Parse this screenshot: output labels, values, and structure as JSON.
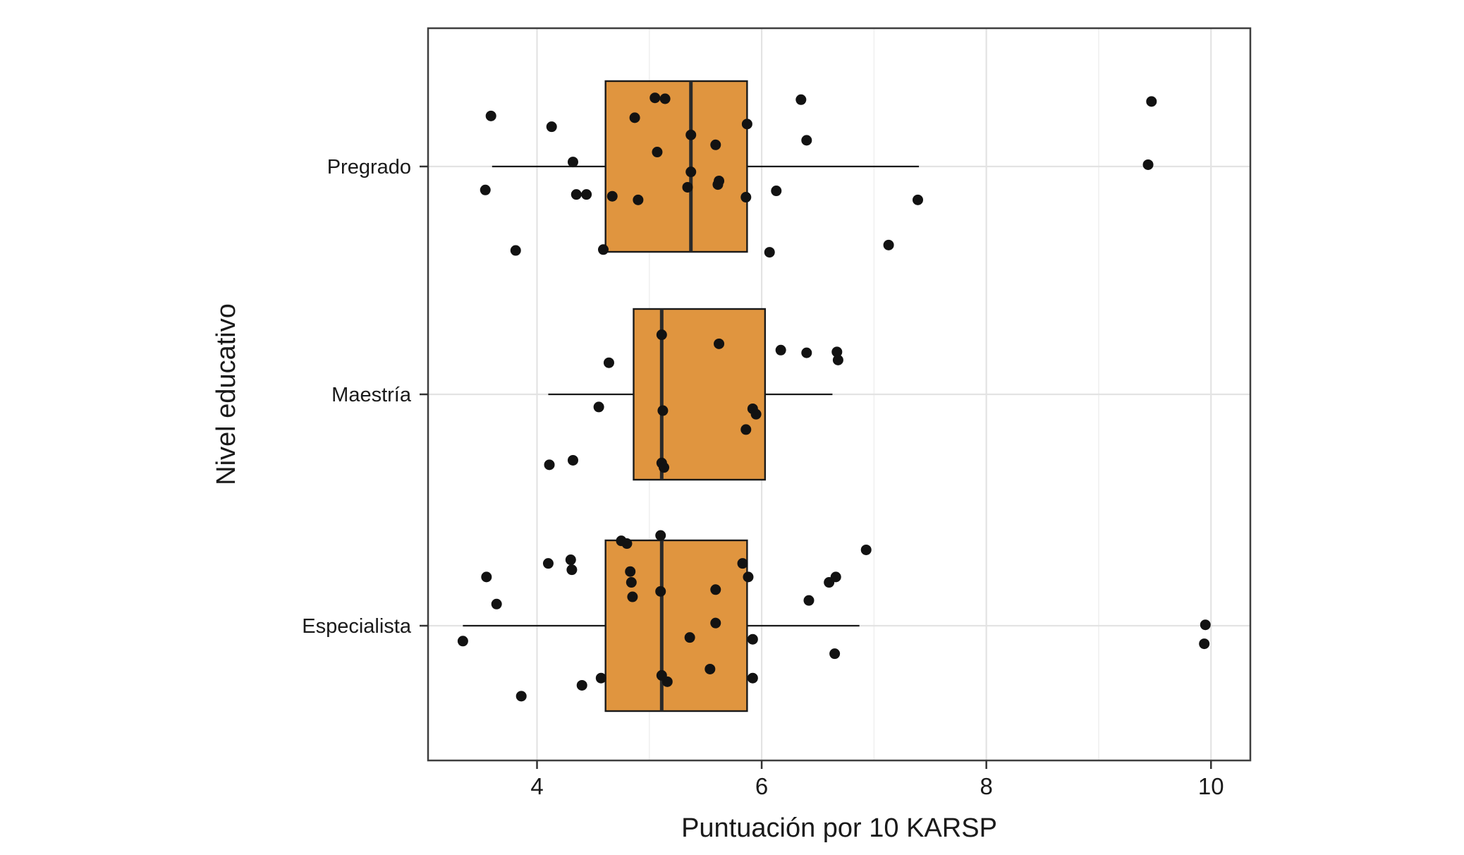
{
  "figure": {
    "background": "#ffffff",
    "panel_border_color": "#3f3f3f",
    "grid_major_color": "#e3e3e3",
    "grid_minor_color": "#f1f1f1",
    "tick_mark_color": "#333333",
    "text_color": "#1a1a1a"
  },
  "chart_data": {
    "type": "boxplot",
    "orientation": "horizontal",
    "title": "",
    "xlabel": "Puntuación por 10 KARSP",
    "ylabel": "Nivel educativo",
    "x_ticks": [
      4,
      6,
      8,
      10
    ],
    "x_minor_ticks": [
      5,
      7,
      9
    ],
    "xlim": [
      3.03,
      10.35
    ],
    "grid": true,
    "legend": "none",
    "categories": [
      "Pregrado",
      "Maestría",
      "Especialista"
    ],
    "box_fill": "#e0953f",
    "box_stroke": "#1a1a1a",
    "median_color": "#2a2a2a",
    "point_color": "#121212",
    "boxes": [
      {
        "category": "Pregrado",
        "whisker_low": 3.6,
        "q1": 4.61,
        "median": 5.37,
        "q3": 5.87,
        "whisker_high": 7.4
      },
      {
        "category": "Maestría",
        "whisker_low": 4.1,
        "q1": 4.86,
        "median": 5.11,
        "q3": 6.03,
        "whisker_high": 6.63
      },
      {
        "category": "Especialista",
        "whisker_low": 3.34,
        "q1": 4.61,
        "median": 5.11,
        "q3": 5.87,
        "whisker_high": 6.87
      }
    ],
    "jitter_points": [
      {
        "category": "Pregrado",
        "points": [
          [
            3.59,
            -0.56
          ],
          [
            4.13,
            -0.44
          ],
          [
            4.87,
            -0.54
          ],
          [
            5.05,
            -0.76
          ],
          [
            5.14,
            -0.75
          ],
          [
            5.37,
            -0.35
          ],
          [
            5.59,
            -0.24
          ],
          [
            5.87,
            -0.47
          ],
          [
            6.35,
            -0.74
          ],
          [
            6.4,
            -0.29
          ],
          [
            9.47,
            -0.72
          ],
          [
            4.32,
            -0.05
          ],
          [
            5.07,
            -0.16
          ],
          [
            5.37,
            0.06
          ],
          [
            5.62,
            0.16
          ],
          [
            9.44,
            -0.02
          ],
          [
            3.54,
            0.26
          ],
          [
            4.35,
            0.31
          ],
          [
            4.44,
            0.31
          ],
          [
            4.67,
            0.33
          ],
          [
            4.9,
            0.37
          ],
          [
            5.34,
            0.23
          ],
          [
            5.61,
            0.2
          ],
          [
            5.86,
            0.34
          ],
          [
            6.13,
            0.27
          ],
          [
            7.39,
            0.37
          ],
          [
            3.81,
            0.93
          ],
          [
            4.59,
            0.92
          ],
          [
            6.07,
            0.95
          ],
          [
            7.13,
            0.87
          ]
        ]
      },
      {
        "category": "Maestría",
        "points": [
          [
            4.64,
            -0.35
          ],
          [
            5.11,
            -0.66
          ],
          [
            5.62,
            -0.56
          ],
          [
            6.17,
            -0.49
          ],
          [
            6.4,
            -0.46
          ],
          [
            6.67,
            -0.47
          ],
          [
            6.68,
            -0.38
          ],
          [
            4.55,
            0.14
          ],
          [
            5.12,
            0.18
          ],
          [
            5.92,
            0.16
          ],
          [
            5.95,
            0.22
          ],
          [
            5.86,
            0.39
          ],
          [
            4.11,
            0.78
          ],
          [
            4.32,
            0.73
          ],
          [
            5.11,
            0.76
          ],
          [
            5.13,
            0.81
          ]
        ]
      },
      {
        "category": "Especialista",
        "points": [
          [
            4.75,
            -0.94
          ],
          [
            4.8,
            -0.91
          ],
          [
            5.1,
            -1.0
          ],
          [
            6.93,
            -0.84
          ],
          [
            4.1,
            -0.69
          ],
          [
            4.3,
            -0.73
          ],
          [
            4.31,
            -0.62
          ],
          [
            3.55,
            -0.54
          ],
          [
            4.83,
            -0.6
          ],
          [
            4.84,
            -0.48
          ],
          [
            5.83,
            -0.69
          ],
          [
            5.88,
            -0.54
          ],
          [
            6.6,
            -0.48
          ],
          [
            6.66,
            -0.54
          ],
          [
            3.64,
            -0.24
          ],
          [
            4.85,
            -0.32
          ],
          [
            5.1,
            -0.38
          ],
          [
            5.59,
            -0.4
          ],
          [
            6.42,
            -0.28
          ],
          [
            5.59,
            -0.03
          ],
          [
            5.36,
            0.13
          ],
          [
            5.92,
            0.15
          ],
          [
            3.34,
            0.17
          ],
          [
            6.65,
            0.31
          ],
          [
            9.95,
            -0.01
          ],
          [
            9.94,
            0.2
          ],
          [
            4.4,
            0.66
          ],
          [
            4.57,
            0.58
          ],
          [
            5.16,
            0.62
          ],
          [
            5.54,
            0.48
          ],
          [
            5.92,
            0.58
          ],
          [
            3.86,
            0.78
          ],
          [
            5.11,
            0.55
          ]
        ]
      }
    ]
  }
}
